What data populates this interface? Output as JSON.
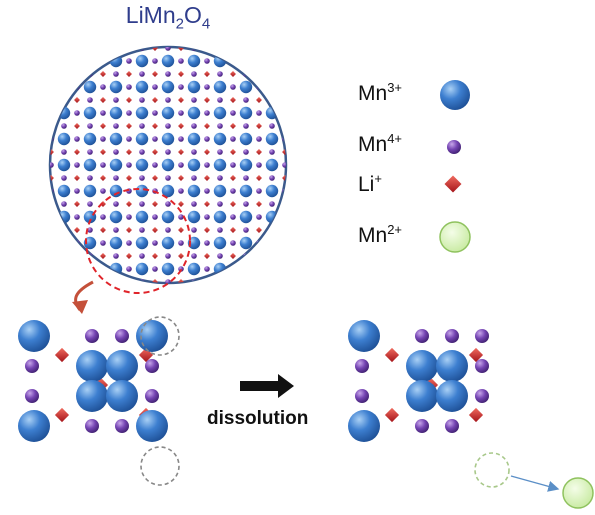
{
  "title": {
    "main": "LiMn",
    "sub1": "2",
    "mid": "O",
    "sub2": "4"
  },
  "legend": [
    {
      "base": "Mn",
      "charge": "3+",
      "icon": "large-blue-sphere-icon"
    },
    {
      "base": "Mn",
      "charge": "4+",
      "icon": "small-purple-sphere-icon"
    },
    {
      "base": "Li",
      "charge": "+",
      "icon": "red-diamond-icon"
    },
    {
      "base": "Mn",
      "charge": "2+",
      "icon": "pale-green-sphere-icon"
    }
  ],
  "process_label": "dissolution",
  "colors": {
    "mn3": "#2f6fc4",
    "mn4": "#6a3fa0",
    "li": "#c8282a",
    "mn2": "#d9f2b8",
    "circle_border": "#3b5a8c",
    "zoom_circle": "#e0242a",
    "title": "#2f3d8c"
  }
}
